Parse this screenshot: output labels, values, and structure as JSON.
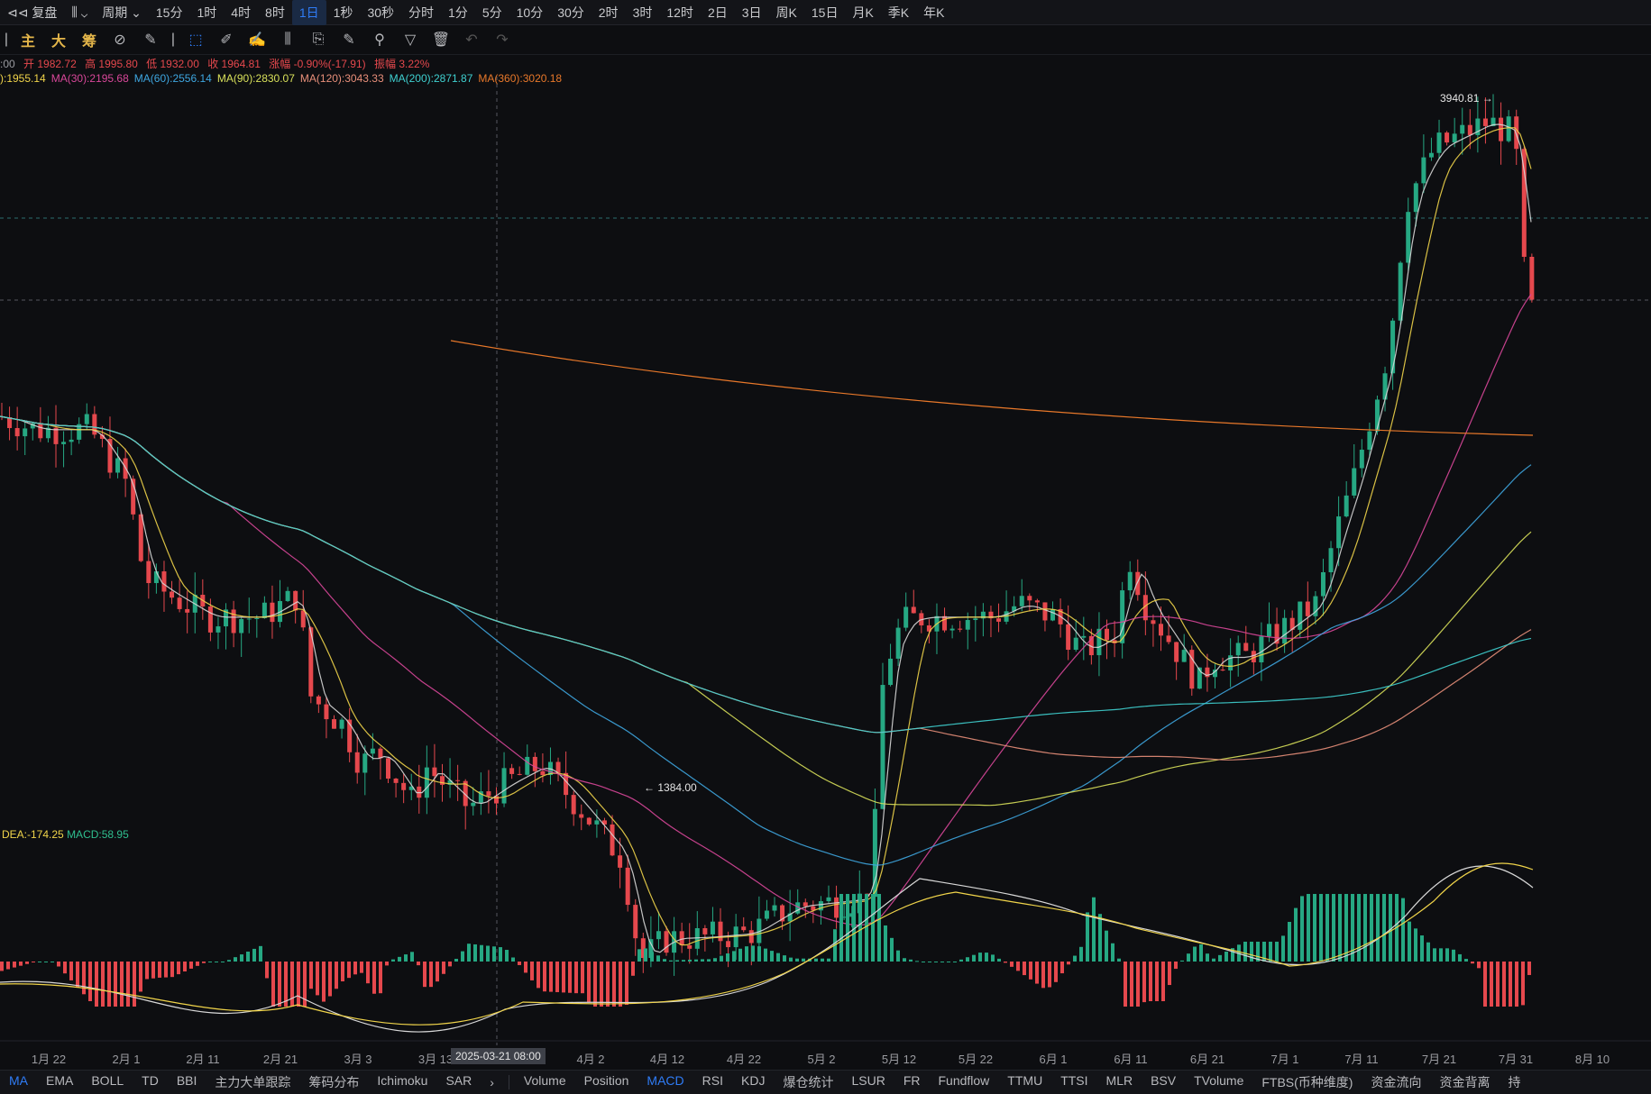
{
  "topbar": {
    "title": "复盘",
    "period_label": "周期",
    "intervals": [
      "15分",
      "1时",
      "4时",
      "8时",
      "1日",
      "1秒",
      "30秒",
      "分时",
      "1分",
      "5分",
      "10分",
      "30分",
      "2时",
      "3时",
      "12时",
      "2日",
      "3日",
      "周K",
      "15日",
      "月K",
      "季K",
      "年K"
    ],
    "active_interval": "1日"
  },
  "toolbar": {
    "labels": [
      "主",
      "大",
      "筹"
    ],
    "icons": [
      "indicator-icon",
      "brush-icon",
      "select-icon",
      "pencil-icon",
      "draw-icon",
      "bars-icon",
      "copy-icon",
      "note-icon",
      "magic-icon",
      "filter-icon",
      "trash-icon",
      "undo-icon",
      "redo-icon"
    ]
  },
  "info": {
    "time": ":00",
    "open": "开 1982.72",
    "high": "高 1995.80",
    "low": "低 1932.00",
    "close": "收 1964.81",
    "change": "涨幅 -0.90%(-17.91)",
    "amplitude": "振幅 3.22%"
  },
  "ma": [
    {
      "text": "):1955.14",
      "color": "#f0d44a"
    },
    {
      "text": "MA(30):2195.68",
      "color": "#d9479a"
    },
    {
      "text": "MA(60):2556.14",
      "color": "#3ea6e0"
    },
    {
      "text": "MA(90):2830.07",
      "color": "#d8e05a"
    },
    {
      "text": "MA(120):3043.33",
      "color": "#e88f7a"
    },
    {
      "text": "MA(200):2871.87",
      "color": "#3fd0d0"
    },
    {
      "text": "MA(360):3020.18",
      "color": "#e8782a"
    }
  ],
  "macd_info": {
    "dea": "DEA:-174.25",
    "macd": "MACD:58.95",
    "dea_color": "#f0d44a",
    "macd_color": "#2fbf8f"
  },
  "chart_labels": {
    "high": "3940.81",
    "low": "1384.00"
  },
  "xaxis": {
    "ticks": [
      "1月 22",
      "2月 1",
      "2月 11",
      "2月 21",
      "3月 3",
      "3月 13",
      "4月 2",
      "4月 12",
      "4月 22",
      "5月 2",
      "5月 12",
      "5月 22",
      "6月 1",
      "6月 11",
      "6月 21",
      "7月 1",
      "7月 11",
      "7月 21",
      "7月 31",
      "8月 10"
    ],
    "crosshair": "2025-03-21 08:00"
  },
  "bottombar": {
    "main_indicators": [
      "MA",
      "EMA",
      "BOLL",
      "TD",
      "BBI",
      "主力大单跟踪",
      "筹码分布",
      "Ichimoku",
      "SAR"
    ],
    "sub_indicators": [
      "Volume",
      "Position",
      "MACD",
      "RSI",
      "KDJ",
      "爆仓统计",
      "LSUR",
      "FR",
      "Fundflow",
      "TTMU",
      "TTSI",
      "MLR",
      "BSV",
      "TVolume",
      "FTBS(币种维度)",
      "资金流向",
      "资金背离",
      "持"
    ],
    "active_main": "MA",
    "active_sub": "MACD"
  },
  "colors": {
    "up": "#26a883",
    "down": "#e5484d",
    "accent": "#2f7cf6"
  }
}
